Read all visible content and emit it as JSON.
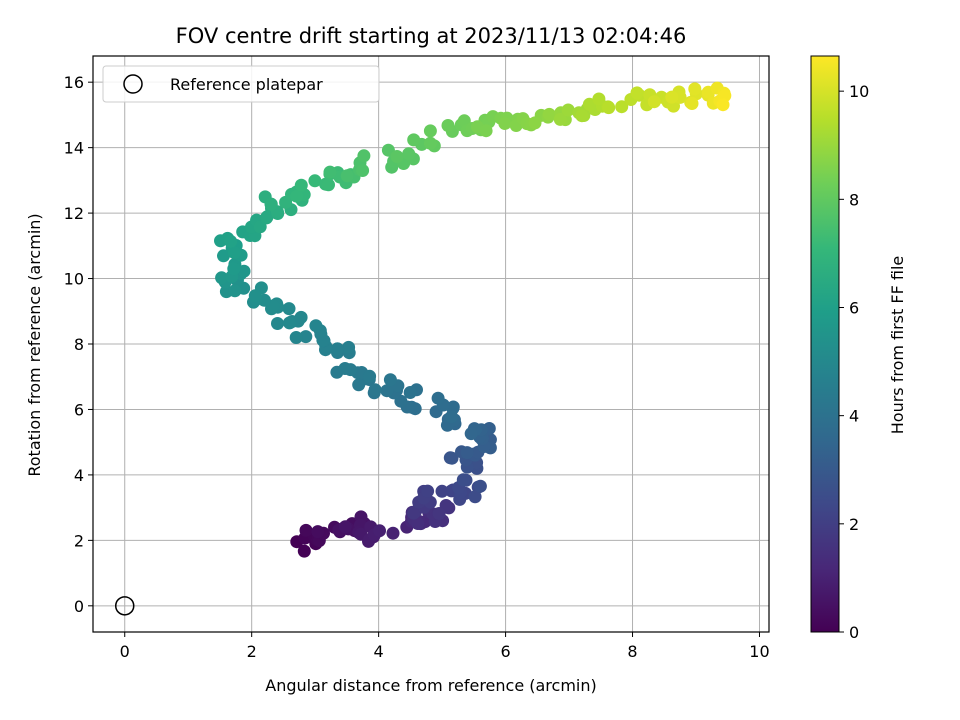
{
  "chart_data": {
    "type": "scatter",
    "title": "FOV centre drift starting at 2023/11/13 02:04:46",
    "xlabel": "Angular distance from reference (arcmin)",
    "ylabel": "Rotation from reference (arcmin)",
    "xlim": [
      -0.5,
      10.15
    ],
    "ylim": [
      -0.8,
      16.8
    ],
    "xticks": [
      0,
      2,
      4,
      6,
      8,
      10
    ],
    "yticks": [
      0,
      2,
      4,
      6,
      8,
      10,
      12,
      14,
      16
    ],
    "grid": true,
    "legend": {
      "placement": "upper-left",
      "entries": [
        "Reference platepar"
      ]
    },
    "reference_point": {
      "x": 0,
      "y": 0
    },
    "colorbar": {
      "label": "Hours from first FF file",
      "range": [
        0,
        10.65
      ],
      "ticks": [
        0,
        2,
        4,
        6,
        8,
        10
      ],
      "colormap": "viridis"
    },
    "colormap_stops": [
      "#440154",
      "#482878",
      "#3e4989",
      "#31688e",
      "#26828e",
      "#1f9e89",
      "#35b779",
      "#6ece58",
      "#b5de2b",
      "#fde725"
    ],
    "path": [
      [
        2.92,
        1.75,
        0.0
      ],
      [
        2.9,
        2.2,
        0.2
      ],
      [
        3.4,
        2.3,
        0.4
      ],
      [
        3.65,
        2.55,
        0.6
      ],
      [
        3.85,
        2.1,
        0.8
      ],
      [
        4.5,
        2.6,
        1.2
      ],
      [
        4.7,
        2.7,
        1.4
      ],
      [
        4.95,
        2.8,
        1.6
      ],
      [
        4.55,
        3.3,
        1.9
      ],
      [
        5.3,
        3.3,
        2.2
      ],
      [
        5.55,
        3.6,
        2.5
      ],
      [
        5.2,
        4.5,
        2.8
      ],
      [
        5.55,
        4.8,
        3.1
      ],
      [
        5.65,
        5.3,
        3.3
      ],
      [
        5.2,
        5.6,
        3.6
      ],
      [
        4.9,
        6.1,
        3.8
      ],
      [
        4.4,
        6.5,
        4.0
      ],
      [
        4.0,
        6.7,
        4.2
      ],
      [
        3.6,
        7.3,
        4.4
      ],
      [
        3.3,
        7.8,
        4.6
      ],
      [
        2.9,
        8.2,
        4.8
      ],
      [
        2.5,
        8.8,
        5.0
      ],
      [
        2.1,
        9.4,
        5.2
      ],
      [
        1.8,
        9.8,
        5.4
      ],
      [
        1.6,
        10.4,
        5.7
      ],
      [
        1.7,
        11.1,
        6.0
      ],
      [
        1.95,
        11.7,
        6.3
      ],
      [
        2.3,
        12.2,
        6.6
      ],
      [
        2.7,
        12.6,
        6.9
      ],
      [
        3.1,
        12.9,
        7.2
      ],
      [
        3.5,
        13.2,
        7.4
      ],
      [
        4.0,
        13.6,
        7.7
      ],
      [
        4.5,
        13.9,
        7.9
      ],
      [
        5.1,
        14.5,
        8.2
      ],
      [
        5.6,
        14.8,
        8.4
      ],
      [
        6.1,
        14.7,
        8.6
      ],
      [
        6.6,
        14.9,
        8.8
      ],
      [
        7.1,
        15.1,
        9.1
      ],
      [
        7.6,
        15.3,
        9.4
      ],
      [
        8.1,
        15.5,
        9.7
      ],
      [
        8.6,
        15.5,
        10.0
      ],
      [
        9.1,
        15.6,
        10.3
      ],
      [
        9.45,
        15.55,
        10.6
      ]
    ],
    "point_count": 290
  }
}
